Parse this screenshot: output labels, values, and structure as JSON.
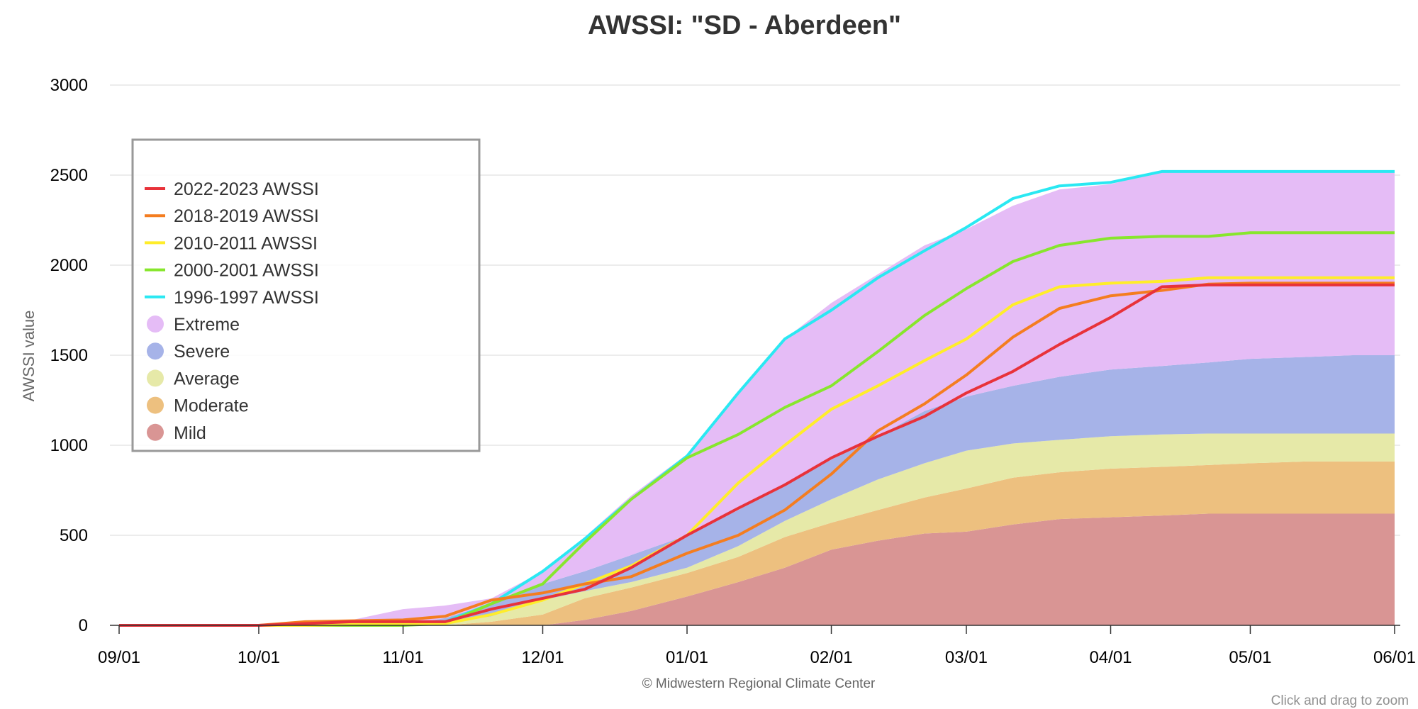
{
  "page": {
    "title": "AWSSI: \"SD - Aberdeen\"",
    "credit": "© Midwestern Regional Climate Center",
    "zoom_hint": "Click and drag to zoom"
  },
  "chart_data": {
    "type": "area",
    "title": "AWSSI: \"SD - Aberdeen\"",
    "xlabel": "",
    "ylabel": "AWSSI value",
    "ylim": [
      0,
      3000
    ],
    "yticks": [
      0,
      500,
      1000,
      1500,
      2000,
      2500,
      3000
    ],
    "xlim": [
      "09/01",
      "06/01"
    ],
    "xticks": [
      {
        "label": "09/01",
        "day": 0
      },
      {
        "label": "10/01",
        "day": 30
      },
      {
        "label": "11/01",
        "day": 61
      },
      {
        "label": "12/01",
        "day": 91
      },
      {
        "label": "01/01",
        "day": 122
      },
      {
        "label": "02/01",
        "day": 153
      },
      {
        "label": "03/01",
        "day": 182
      },
      {
        "label": "04/01",
        "day": 213
      },
      {
        "label": "05/01",
        "day": 243
      },
      {
        "label": "06/01",
        "day": 274
      }
    ],
    "grid": true,
    "legend_position": "top-left",
    "x": [
      0,
      30,
      40,
      50,
      61,
      70,
      80,
      91,
      100,
      110,
      122,
      133,
      143,
      153,
      163,
      173,
      182,
      192,
      202,
      213,
      224,
      234,
      243,
      255,
      265,
      274
    ],
    "bands": [
      {
        "name": "Mild",
        "color": "#d99594",
        "lower": [
          0,
          0,
          0,
          0,
          0,
          0,
          0,
          0,
          0,
          0,
          0,
          0,
          0,
          0,
          0,
          0,
          0,
          0,
          0,
          0,
          0,
          0,
          0,
          0,
          0,
          0
        ],
        "upper": [
          0,
          0,
          0,
          0,
          0,
          0,
          0,
          0,
          30,
          80,
          160,
          240,
          320,
          420,
          470,
          510,
          520,
          560,
          590,
          600,
          610,
          620,
          620,
          620,
          620,
          620
        ]
      },
      {
        "name": "Moderate",
        "color": "#edc07f",
        "lower": [
          0,
          0,
          0,
          0,
          0,
          0,
          0,
          0,
          30,
          80,
          160,
          240,
          320,
          420,
          470,
          510,
          520,
          560,
          590,
          600,
          610,
          620,
          620,
          620,
          620,
          620
        ],
        "upper": [
          0,
          0,
          0,
          0,
          0,
          0,
          20,
          60,
          150,
          210,
          290,
          380,
          490,
          570,
          640,
          710,
          760,
          820,
          850,
          870,
          880,
          890,
          900,
          910,
          910,
          910
        ]
      },
      {
        "name": "Average",
        "color": "#e6e9a8",
        "lower": [
          0,
          0,
          0,
          0,
          0,
          0,
          20,
          60,
          150,
          210,
          290,
          380,
          490,
          570,
          640,
          710,
          760,
          820,
          850,
          870,
          880,
          890,
          900,
          910,
          910,
          910
        ],
        "upper": [
          0,
          0,
          0,
          0,
          0,
          10,
          50,
          140,
          190,
          240,
          320,
          440,
          580,
          700,
          810,
          900,
          970,
          1010,
          1030,
          1050,
          1060,
          1065,
          1065,
          1065,
          1065,
          1065
        ]
      },
      {
        "name": "Severe",
        "color": "#a6b3e8",
        "lower": [
          0,
          0,
          0,
          0,
          0,
          10,
          50,
          140,
          190,
          240,
          320,
          440,
          580,
          700,
          810,
          900,
          970,
          1010,
          1030,
          1050,
          1060,
          1065,
          1065,
          1065,
          1065,
          1065
        ],
        "upper": [
          0,
          0,
          0,
          0,
          0,
          40,
          120,
          230,
          300,
          390,
          500,
          640,
          790,
          920,
          1050,
          1190,
          1270,
          1330,
          1380,
          1420,
          1440,
          1460,
          1480,
          1490,
          1500,
          1500
        ]
      },
      {
        "name": "Extreme",
        "color": "#e5bcf6",
        "lower": [
          0,
          0,
          0,
          0,
          0,
          40,
          120,
          230,
          300,
          390,
          500,
          640,
          790,
          920,
          1050,
          1190,
          1270,
          1330,
          1380,
          1420,
          1440,
          1460,
          1480,
          1490,
          1500,
          1500
        ],
        "upper": [
          0,
          0,
          10,
          30,
          90,
          110,
          150,
          300,
          490,
          720,
          950,
          1280,
          1590,
          1790,
          1950,
          2110,
          2200,
          2330,
          2420,
          2450,
          2520,
          2520,
          2520,
          2520,
          2520,
          2520
        ]
      }
    ],
    "series": [
      {
        "name": "2022-2023 AWSSI",
        "color": "#e8323a",
        "values": [
          0,
          0,
          10,
          20,
          20,
          20,
          90,
          150,
          200,
          320,
          500,
          650,
          780,
          930,
          1050,
          1160,
          1290,
          1410,
          1560,
          1710,
          1880,
          1890,
          1890,
          1890,
          1890,
          1890
        ]
      },
      {
        "name": "2018-2019 AWSSI",
        "color": "#f47d20",
        "values": [
          0,
          0,
          20,
          25,
          30,
          50,
          140,
          180,
          230,
          270,
          400,
          500,
          640,
          840,
          1080,
          1230,
          1390,
          1600,
          1760,
          1830,
          1860,
          1895,
          1900,
          1900,
          1900,
          1900
        ]
      },
      {
        "name": "2010-2011 AWSSI",
        "color": "#ffed2a",
        "values": [
          0,
          0,
          0,
          5,
          10,
          10,
          60,
          140,
          230,
          330,
          500,
          790,
          1000,
          1200,
          1330,
          1470,
          1590,
          1780,
          1880,
          1900,
          1910,
          1930,
          1930,
          1930,
          1930,
          1930
        ]
      },
      {
        "name": "2000-2001 AWSSI",
        "color": "#87e62d",
        "values": [
          0,
          0,
          0,
          0,
          0,
          10,
          120,
          230,
          460,
          700,
          930,
          1060,
          1210,
          1330,
          1520,
          1720,
          1870,
          2020,
          2110,
          2150,
          2160,
          2160,
          2180,
          2180,
          2180,
          2180
        ]
      },
      {
        "name": "1996-1997 AWSSI",
        "color": "#2ae8f2",
        "values": [
          0,
          0,
          0,
          0,
          0,
          20,
          120,
          300,
          480,
          700,
          940,
          1290,
          1590,
          1750,
          1930,
          2080,
          2210,
          2370,
          2440,
          2460,
          2520,
          2520,
          2520,
          2520,
          2520,
          2520
        ]
      }
    ]
  }
}
